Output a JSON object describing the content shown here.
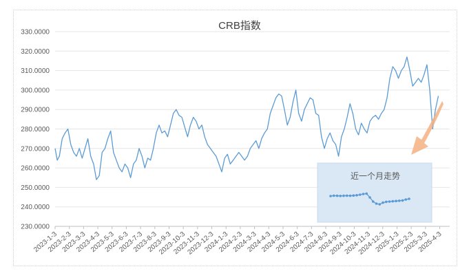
{
  "chart_data": {
    "type": "line",
    "title": "CRB指数",
    "xlabel": "",
    "ylabel": "",
    "ylim": [
      230,
      330
    ],
    "y_ticks": [
      "230.0000",
      "240.0000",
      "250.0000",
      "260.0000",
      "270.0000",
      "280.0000",
      "290.0000",
      "300.0000",
      "310.0000",
      "320.0000",
      "330.0000"
    ],
    "x_ticks": [
      "2023-1-3",
      "2023-2-3",
      "2023-3-3",
      "2023-4-3",
      "2023-5-3",
      "2023-6-3",
      "2023-7-3",
      "2023-8-3",
      "2023-9-3",
      "2023-10-3",
      "2023-11-3",
      "2023-12-3",
      "2024-1-3",
      "2024-2-3",
      "2024-3-3",
      "2024-4-3",
      "2024-5-3",
      "2024-6-3",
      "2024-7-3",
      "2024-8-3",
      "2024-9-3",
      "2024-10-3",
      "2024-11-3",
      "2024-12-3",
      "2025-1-3",
      "2025-2-3",
      "2025-3-3",
      "2025-4-3"
    ],
    "grid": true,
    "line_color": "#5b9bd5",
    "series": [
      {
        "values": [
          [
            0,
            270
          ],
          [
            0.15,
            264
          ],
          [
            0.3,
            266
          ],
          [
            0.5,
            275
          ],
          [
            0.7,
            278
          ],
          [
            0.9,
            280
          ],
          [
            1.1,
            272
          ],
          [
            1.3,
            268
          ],
          [
            1.5,
            266
          ],
          [
            1.7,
            270
          ],
          [
            1.9,
            265
          ],
          [
            2.1,
            270
          ],
          [
            2.3,
            275
          ],
          [
            2.5,
            266
          ],
          [
            2.7,
            262
          ],
          [
            2.9,
            254
          ],
          [
            3.1,
            256
          ],
          [
            3.3,
            268
          ],
          [
            3.5,
            270
          ],
          [
            3.7,
            275
          ],
          [
            3.9,
            279
          ],
          [
            4.1,
            268
          ],
          [
            4.3,
            264
          ],
          [
            4.5,
            260
          ],
          [
            4.7,
            258
          ],
          [
            4.9,
            262
          ],
          [
            5.1,
            260
          ],
          [
            5.3,
            255
          ],
          [
            5.5,
            262
          ],
          [
            5.7,
            264
          ],
          [
            5.9,
            270
          ],
          [
            6.1,
            266
          ],
          [
            6.3,
            260
          ],
          [
            6.5,
            265
          ],
          [
            6.7,
            264
          ],
          [
            6.9,
            270
          ],
          [
            7.1,
            278
          ],
          [
            7.3,
            282
          ],
          [
            7.5,
            278
          ],
          [
            7.7,
            279
          ],
          [
            7.9,
            276
          ],
          [
            8.1,
            282
          ],
          [
            8.3,
            288
          ],
          [
            8.5,
            290
          ],
          [
            8.7,
            287
          ],
          [
            8.9,
            286
          ],
          [
            9.1,
            281
          ],
          [
            9.3,
            276
          ],
          [
            9.5,
            282
          ],
          [
            9.7,
            286
          ],
          [
            9.9,
            284
          ],
          [
            10.1,
            280
          ],
          [
            10.3,
            282
          ],
          [
            10.5,
            276
          ],
          [
            10.7,
            272
          ],
          [
            10.9,
            270
          ],
          [
            11.1,
            268
          ],
          [
            11.3,
            266
          ],
          [
            11.5,
            262
          ],
          [
            11.7,
            258
          ],
          [
            11.9,
            265
          ],
          [
            12.1,
            267
          ],
          [
            12.3,
            262
          ],
          [
            12.5,
            264
          ],
          [
            12.7,
            266
          ],
          [
            12.9,
            268
          ],
          [
            13.1,
            266
          ],
          [
            13.3,
            264
          ],
          [
            13.5,
            266
          ],
          [
            13.7,
            270
          ],
          [
            13.9,
            272
          ],
          [
            14.1,
            274
          ],
          [
            14.3,
            270
          ],
          [
            14.5,
            275
          ],
          [
            14.7,
            278
          ],
          [
            14.9,
            280
          ],
          [
            15.1,
            288
          ],
          [
            15.3,
            292
          ],
          [
            15.5,
            296
          ],
          [
            15.7,
            298
          ],
          [
            15.9,
            297
          ],
          [
            16.1,
            290
          ],
          [
            16.3,
            282
          ],
          [
            16.5,
            286
          ],
          [
            16.7,
            294
          ],
          [
            16.9,
            300
          ],
          [
            17.1,
            288
          ],
          [
            17.3,
            284
          ],
          [
            17.5,
            290
          ],
          [
            17.7,
            293
          ],
          [
            17.9,
            296
          ],
          [
            18.1,
            295
          ],
          [
            18.3,
            288
          ],
          [
            18.5,
            287
          ],
          [
            18.7,
            276
          ],
          [
            18.9,
            270
          ],
          [
            19.1,
            275
          ],
          [
            19.3,
            278
          ],
          [
            19.5,
            274
          ],
          [
            19.7,
            272
          ],
          [
            19.9,
            266
          ],
          [
            20.1,
            276
          ],
          [
            20.3,
            280
          ],
          [
            20.5,
            286
          ],
          [
            20.7,
            293
          ],
          [
            20.9,
            288
          ],
          [
            21.1,
            280
          ],
          [
            21.3,
            277
          ],
          [
            21.5,
            283
          ],
          [
            21.7,
            280
          ],
          [
            21.9,
            278
          ],
          [
            22.1,
            284
          ],
          [
            22.3,
            286
          ],
          [
            22.5,
            287
          ],
          [
            22.7,
            285
          ],
          [
            22.9,
            288
          ],
          [
            23.1,
            290
          ],
          [
            23.3,
            296
          ],
          [
            23.5,
            306
          ],
          [
            23.7,
            312
          ],
          [
            23.9,
            310
          ],
          [
            24.1,
            306
          ],
          [
            24.3,
            310
          ],
          [
            24.5,
            312
          ],
          [
            24.7,
            317
          ],
          [
            24.9,
            310
          ],
          [
            25.1,
            302
          ],
          [
            25.3,
            304
          ],
          [
            25.5,
            306
          ],
          [
            25.7,
            304
          ],
          [
            25.9,
            308
          ],
          [
            26.1,
            313
          ],
          [
            26.3,
            300
          ],
          [
            26.5,
            280
          ],
          [
            26.7,
            290
          ],
          [
            26.9,
            297
          ]
        ]
      }
    ],
    "inset": {
      "title": "近一个月走势",
      "values": [
        247.0,
        247.3,
        247.2,
        247.1,
        247.2,
        247.3,
        247.2,
        247.4,
        247.6,
        248.0,
        248.5,
        248.8,
        246.0,
        243.0,
        241.5,
        241.0,
        242.2,
        242.8,
        243.0,
        243.2,
        243.4,
        243.6,
        243.8,
        244.5,
        245.0
      ]
    },
    "arrow_color": "#f4b183"
  }
}
